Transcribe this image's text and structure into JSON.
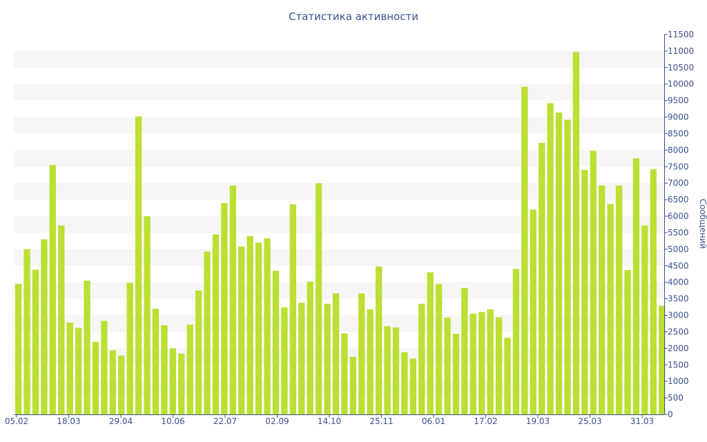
{
  "chart_data": {
    "type": "bar",
    "title": "Статистика активности",
    "xlabel": "",
    "ylabel": "Сообщений",
    "ylim": [
      0,
      11500
    ],
    "y_ticks": [
      0,
      500,
      1000,
      1500,
      2000,
      2500,
      3000,
      3500,
      4000,
      4500,
      5000,
      5500,
      6000,
      6500,
      7000,
      7500,
      8000,
      8500,
      9000,
      9500,
      10000,
      10500,
      11000,
      11500
    ],
    "y_axis_side": "right",
    "grid": "alternating horizontal bands",
    "x_tick_labels": [
      "05.02",
      "18.03",
      "29.04",
      "10.06",
      "22.07",
      "02.09",
      "14.10",
      "25.11",
      "06.01",
      "17.02",
      "19.03",
      "25.03",
      "31.03"
    ],
    "bar_color": "#bbe033",
    "values": [
      3950,
      5000,
      4380,
      5300,
      7550,
      5720,
      2780,
      2620,
      4050,
      2200,
      2830,
      1940,
      1780,
      3980,
      9020,
      6000,
      3200,
      2700,
      2000,
      1840,
      2720,
      3750,
      4930,
      5450,
      6400,
      6930,
      5080,
      5400,
      5200,
      5330,
      4350,
      3240,
      6360,
      3380,
      4020,
      7000,
      3350,
      3660,
      2450,
      1740,
      3660,
      3180,
      4480,
      2670,
      2630,
      1880,
      1690,
      3350,
      4300,
      3940,
      2930,
      2440,
      3830,
      3050,
      3100,
      3180,
      2940,
      2320,
      4400,
      9920,
      6200,
      8220,
      9420,
      9140,
      8920,
      10970,
      7400,
      7980,
      6930,
      6370,
      6930,
      4370,
      7750,
      5720,
      7420,
      3290
    ]
  }
}
